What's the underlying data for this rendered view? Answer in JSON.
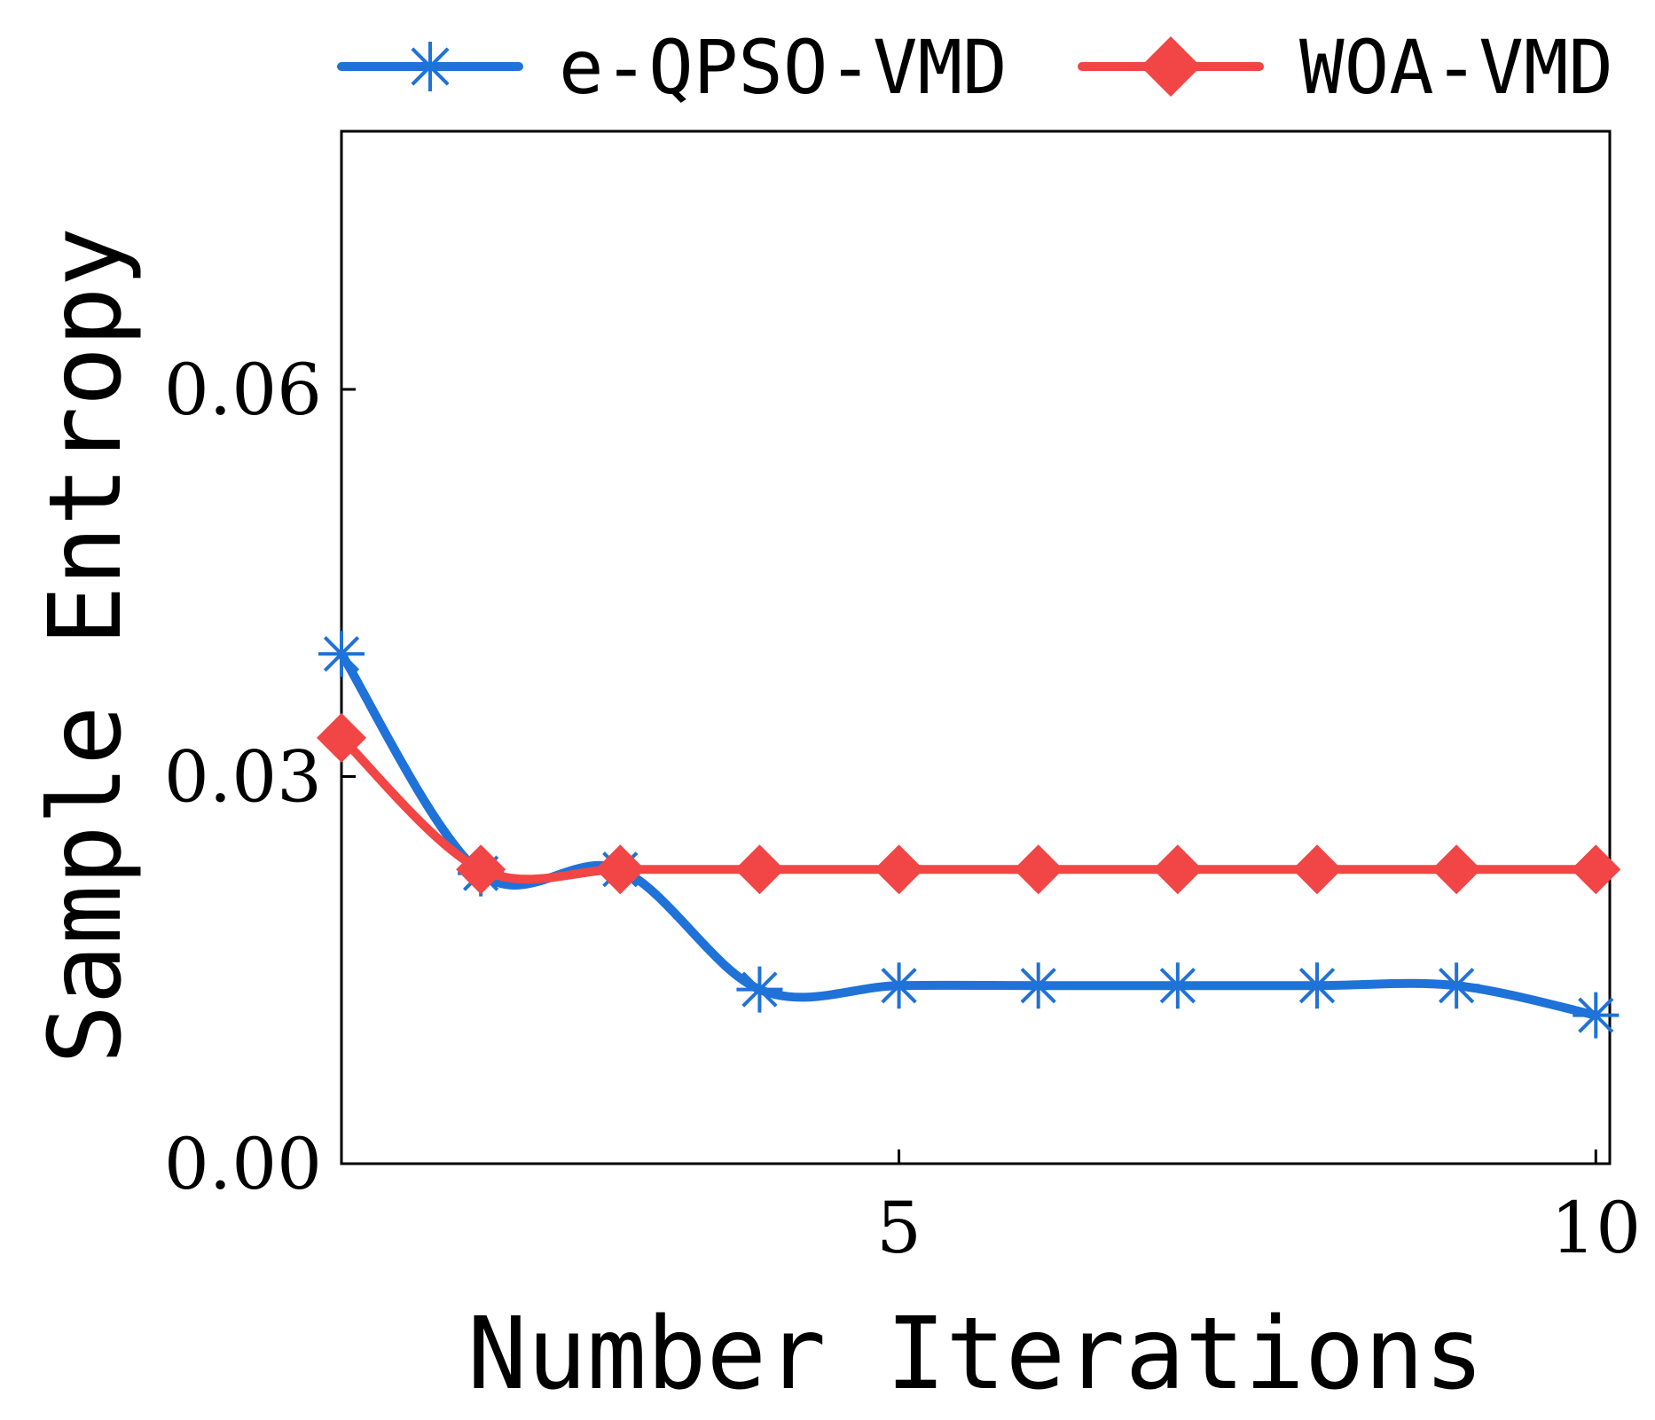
{
  "chart_data": {
    "type": "line",
    "x": [
      1,
      2,
      3,
      4,
      5,
      6,
      7,
      8,
      9,
      10
    ],
    "series": [
      {
        "name": "e-QPSO-VMD",
        "color": "#1f72d8",
        "marker": "asterisk",
        "values": [
          0.0395,
          0.0225,
          0.0228,
          0.0135,
          0.0138,
          0.0138,
          0.0138,
          0.0138,
          0.0138,
          0.0115
        ]
      },
      {
        "name": "WOA-VMD",
        "color": "#f24545",
        "marker": "diamond",
        "values": [
          0.033,
          0.0228,
          0.0228,
          0.0228,
          0.0228,
          0.0228,
          0.0228,
          0.0228,
          0.0228,
          0.0228
        ]
      }
    ],
    "xlabel": "Number Iterations",
    "ylabel": "Sample Entropy",
    "xlim": [
      1,
      10.1
    ],
    "ylim": [
      0.0,
      0.08
    ],
    "xticks": [
      5,
      10
    ],
    "xtick_labels": [
      "5",
      "10"
    ],
    "yticks": [
      0.0,
      0.03,
      0.06
    ],
    "ytick_labels": [
      "0.00",
      "0.03",
      "0.06"
    ],
    "grid": false,
    "legend_position": "top"
  }
}
